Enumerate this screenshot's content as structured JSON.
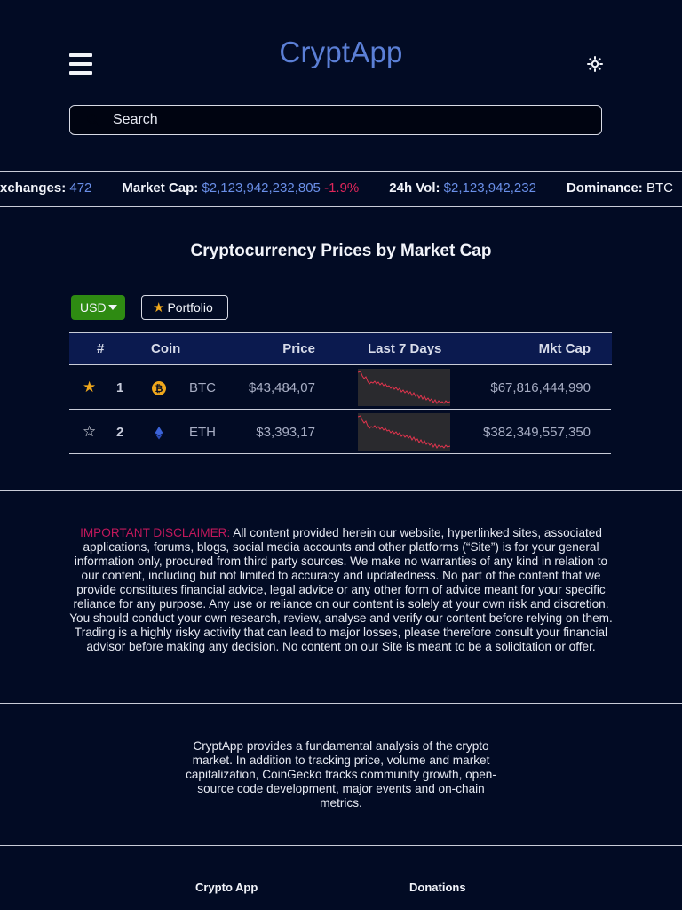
{
  "header": {
    "logo": "CryptApp",
    "menu_icon": "hamburger-icon",
    "theme_icon": "sun-icon"
  },
  "search": {
    "placeholder": "Search",
    "icon": "search-icon"
  },
  "ticker": {
    "exchanges_label": "Exchanges:",
    "exchanges_value": "472",
    "market_cap_label": "Market Cap:",
    "market_cap_value": "$2,123,942,232,805",
    "market_cap_change": "-1.9%",
    "volume_label": "24h Vol:",
    "volume_value": "$2,123,942,232",
    "dominance_label": "Dominance:",
    "dominance_value": "BTC"
  },
  "main": {
    "title": "Cryptocurrency Prices by Market Cap",
    "currency_button": "USD",
    "portfolio_button": "Portfolio",
    "columns": {
      "rank": "#",
      "coin": "Coin",
      "price": "Price",
      "last7": "Last 7 Days",
      "mktcap": "Mkt Cap"
    },
    "rows": [
      {
        "favorite": true,
        "rank": "1",
        "icon": "bitcoin-icon",
        "symbol": "BTC",
        "price": "$43,484,07",
        "mktcap": "$67,816,444,990"
      },
      {
        "favorite": false,
        "rank": "2",
        "icon": "ethereum-icon",
        "symbol": "ETH",
        "price": "$3,393,17",
        "mktcap": "$382,349,557,350"
      }
    ]
  },
  "disclaimer": {
    "highlight": "IMPORTANT DISCLAIMER:",
    "text": " All content provided herein our website, hyperlinked sites, associated applications, forums, blogs, social media accounts and other platforms (“Site”) is for your general information only, procured from third party sources. We make no warranties of any kind in relation to our content, including but not limited to accuracy and updatedness. No part of the content that we provide constitutes financial advice, legal advice or any other form of advice meant for your specific reliance for any purpose. Any use or reliance on our content is solely at your own risk and discretion. You should conduct your own research, review, analyse and verify our content before relying on them. Trading is a highly risky activity that can lead to major losses, please therefore consult your financial advisor before making any decision. No content on our Site is meant to be a solicitation or offer."
  },
  "about": {
    "text": "CryptApp provides a fundamental analysis of the crypto market. In addition to tracking price, volume and market capitalization, CoinGecko tracks community growth, open-source code development, major events and on-chain metrics."
  },
  "footer": {
    "crypto_app": "Crypto App",
    "donations": "Donations"
  },
  "colors": {
    "background": "#020b24",
    "accent": "#6a8fe8",
    "negative": "#e0265a",
    "usd_button": "#2e8b12",
    "star": "#f0a81c",
    "disclaimer_highlight": "#c2185b"
  }
}
